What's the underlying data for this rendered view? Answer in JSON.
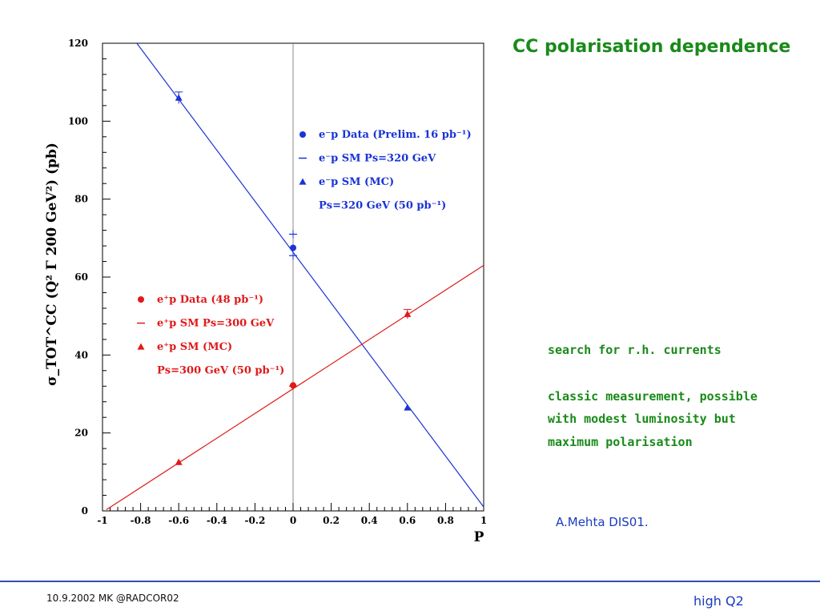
{
  "slide": {
    "title": "CC polarisation dependence",
    "bullets": [
      "search for r.h. currents",
      "classic measurement, possible",
      "with modest luminosity but",
      "maximum polarisation"
    ],
    "author": "A.Mehta DIS01.",
    "footer_left": "10.9.2002 MK @RADCOR02",
    "footer_right": "high Q2"
  },
  "chart_data": {
    "type": "line",
    "xlabel": "P",
    "ylabel": "σ_TOT^CC (Q² Γ 200 GeV²) (pb)",
    "xlim": [
      -1,
      1
    ],
    "ylim": [
      0,
      120
    ],
    "x_ticks": [
      "-1",
      "-0.8",
      "-0.6",
      "-0.4",
      "-0.2",
      "0",
      "0.2",
      "0.4",
      "0.6",
      "0.8",
      "1"
    ],
    "x_tick_values": [
      -1,
      -0.8,
      -0.6,
      -0.4,
      -0.2,
      0,
      0.2,
      0.4,
      0.6,
      0.8,
      1
    ],
    "y_ticks": [
      "0",
      "20",
      "40",
      "60",
      "80",
      "100",
      "120"
    ],
    "y_tick_values": [
      0,
      20,
      40,
      60,
      80,
      100,
      120
    ],
    "zero_line_x": 0,
    "series": [
      {
        "name": "e⁻p",
        "color": "#1a33d6",
        "line": [
          [
            -0.82,
            120
          ],
          [
            1,
            1
          ]
        ],
        "data_points": [
          {
            "x": 0,
            "y": 67.5
          }
        ],
        "sm_markers": [
          {
            "x": 0,
            "y": 71
          },
          {
            "x": 0,
            "y": 65.5
          }
        ],
        "mc_points": [
          {
            "x": -0.6,
            "y": 106,
            "err": 1.5
          },
          {
            "x": 0.6,
            "y": 26.5,
            "err": 0
          }
        ]
      },
      {
        "name": "e⁺p",
        "color": "#e01919",
        "line": [
          [
            -0.98,
            0.3
          ],
          [
            1,
            63
          ]
        ],
        "data_points": [
          {
            "x": 0,
            "y": 32.2
          }
        ],
        "sm_markers": [
          {
            "x": 0,
            "y": 32
          }
        ],
        "mc_points": [
          {
            "x": -0.6,
            "y": 12.5,
            "err": 0
          },
          {
            "x": 0.6,
            "y": 50.5,
            "err": 1.2
          }
        ]
      }
    ],
    "legends": [
      {
        "color": "#1a33d6",
        "entries": [
          {
            "marker": "dot",
            "text": "e⁻p Data (Prelim. 16 pb⁻¹)"
          },
          {
            "marker": "dash",
            "text": "e⁻p SM Ps=320 GeV"
          },
          {
            "marker": "triangle",
            "text": "e⁻p SM (MC)"
          },
          {
            "marker": "none",
            "text": "Ps=320 GeV (50 pb⁻¹)"
          }
        ]
      },
      {
        "color": "#e01919",
        "entries": [
          {
            "marker": "dot",
            "text": "e⁺p Data (48 pb⁻¹)"
          },
          {
            "marker": "dash",
            "text": "e⁺p SM Ps=300 GeV"
          },
          {
            "marker": "triangle",
            "text": "e⁺p SM (MC)"
          },
          {
            "marker": "none",
            "text": "Ps=300 GeV (50 pb⁻¹)"
          }
        ]
      }
    ]
  }
}
